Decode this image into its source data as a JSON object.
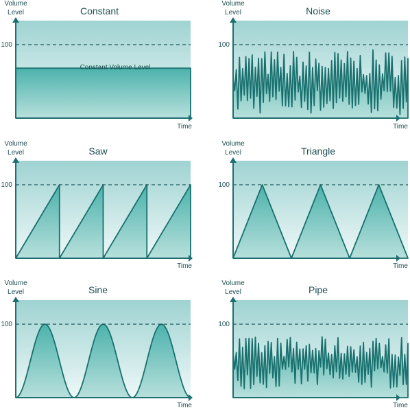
{
  "figure": {
    "panels": [
      {
        "id": "constant",
        "title": "Constant",
        "y_label_line1": "Volume",
        "y_label_line2": "Level",
        "x_label": "Time",
        "tick_label": "100",
        "annotation": "Constant Volume Level",
        "waveform": "constant",
        "level": 0.68
      },
      {
        "id": "noise",
        "title": "Noise",
        "y_label_line1": "Volume",
        "y_label_line2": "Level",
        "x_label": "Time",
        "tick_label": "100",
        "waveform": "noise"
      },
      {
        "id": "saw",
        "title": "Saw",
        "y_label_line1": "Volume",
        "y_label_line2": "Level",
        "x_label": "Time",
        "tick_label": "100",
        "waveform": "saw",
        "cycles": 4
      },
      {
        "id": "triangle",
        "title": "Triangle",
        "y_label_line1": "Volume",
        "y_label_line2": "Level",
        "x_label": "Time",
        "tick_label": "100",
        "waveform": "triangle",
        "cycles": 3
      },
      {
        "id": "sine",
        "title": "Sine",
        "y_label_line1": "Volume",
        "y_label_line2": "Level",
        "x_label": "Time",
        "tick_label": "100",
        "waveform": "sine",
        "cycles": 3
      },
      {
        "id": "pipe",
        "title": "Pipe",
        "y_label_line1": "Volume",
        "y_label_line2": "Level",
        "x_label": "Time",
        "tick_label": "100",
        "waveform": "pipe"
      }
    ]
  },
  "colors": {
    "text": "#1e4e52",
    "axis": "#1e6f70",
    "line": "#19706e",
    "bg_top": "#9fd3d2",
    "bg_bottom": "#eef8f8",
    "fill_top": "#4cb2ac",
    "fill_bottom": "#b8e0dc",
    "dash": "#1e5a5a"
  }
}
